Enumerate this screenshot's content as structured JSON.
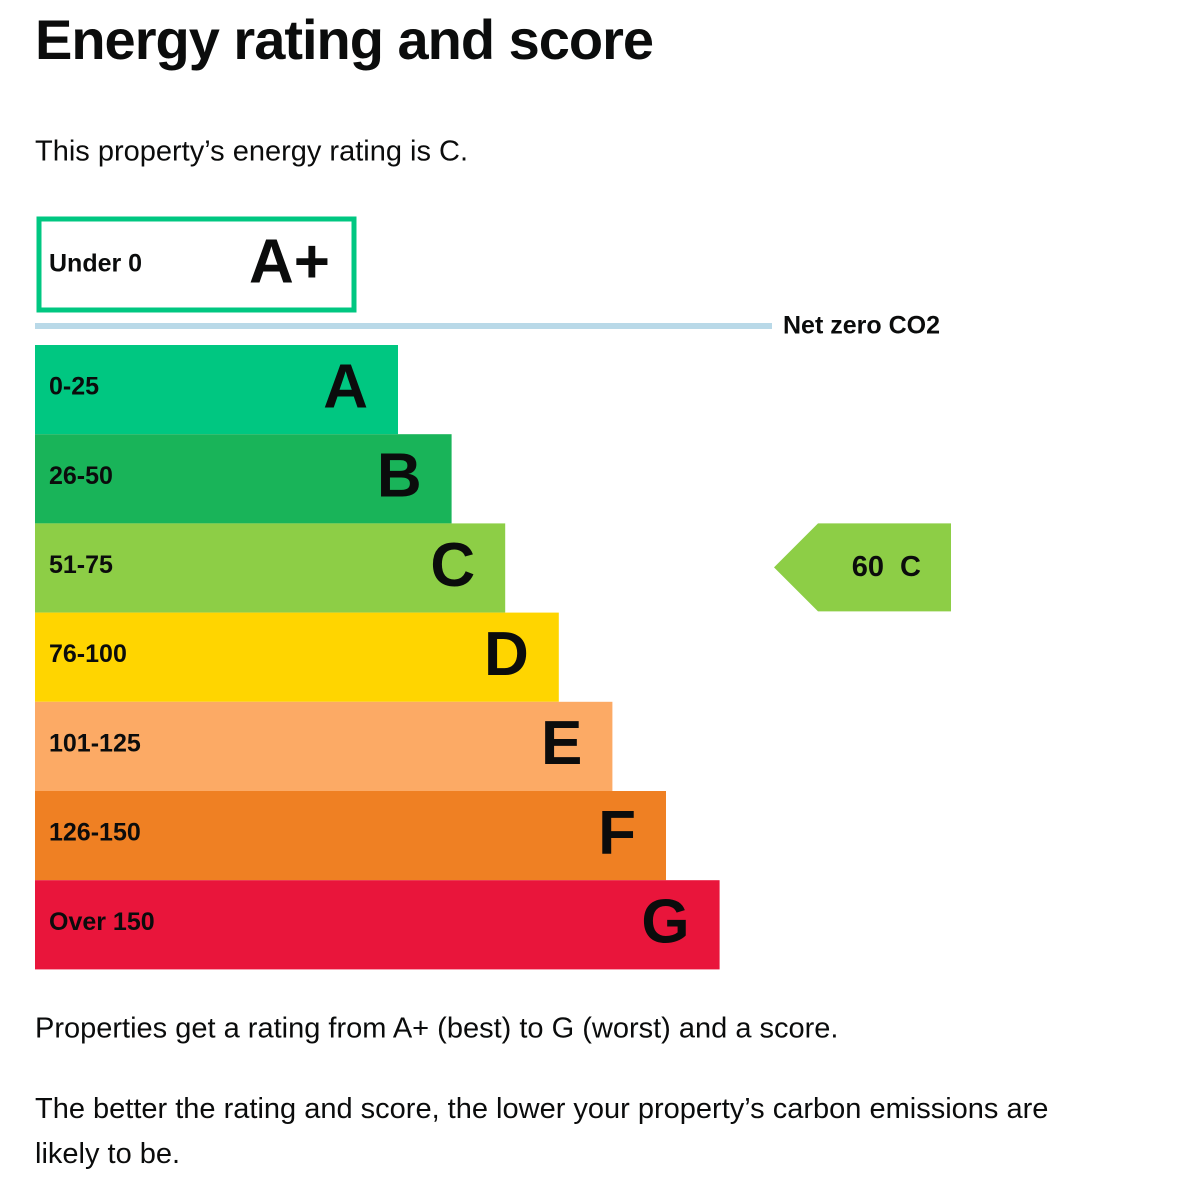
{
  "title": "Energy rating and score",
  "intro": "This property’s energy rating is C.",
  "bands": [
    {
      "range": "Under 0",
      "letter": "A+",
      "color": "#00c781"
    },
    {
      "range": "0-25",
      "letter": "A",
      "color": "#00c781"
    },
    {
      "range": "26-50",
      "letter": "B",
      "color": "#19b459"
    },
    {
      "range": "51-75",
      "letter": "C",
      "color": "#8dce46"
    },
    {
      "range": "76-100",
      "letter": "D",
      "color": "#ffd500"
    },
    {
      "range": "101-125",
      "letter": "E",
      "color": "#fcaa65"
    },
    {
      "range": "126-150",
      "letter": "F",
      "color": "#ef8023"
    },
    {
      "range": "Over 150",
      "letter": "G",
      "color": "#e9153b"
    }
  ],
  "net_zero_label": "Net zero CO2",
  "current_rating": {
    "score": 60,
    "letter": "C"
  },
  "notes": [
    "Properties get a rating from A+ (best) to G (worst) and a score.",
    "The better the rating and score, the lower your property’s carbon emissions are likely to be."
  ]
}
